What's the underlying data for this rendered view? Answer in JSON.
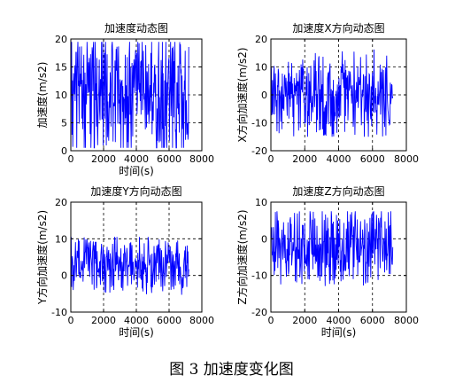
{
  "figure_caption": "图 3  加速度变化图",
  "chart_data": [
    {
      "type": "line",
      "title": "加速度动态图",
      "xlabel": "时间(s)",
      "ylabel": "加速度(m/s2)",
      "xlim": [
        0,
        8000
      ],
      "ylim": [
        0,
        20
      ],
      "xticks": [
        0,
        2000,
        4000,
        6000,
        8000
      ],
      "yticks": [
        0,
        5,
        10,
        15,
        20
      ],
      "grid": true,
      "line_color": "#0000ff",
      "series": [
        {
          "signal": {
            "x_start": 0,
            "x_end": 7200,
            "points": 300,
            "center": 10,
            "amplitude": 6.5,
            "min": 0.5,
            "max": 19.5,
            "period": 420,
            "seed": 3
          }
        }
      ]
    },
    {
      "type": "line",
      "title": "加速度X方向动态图",
      "xlabel": "",
      "ylabel": "X方向加速度(m/s2)",
      "xlim": [
        0,
        8000
      ],
      "ylim": [
        -20,
        20
      ],
      "xticks": [
        0,
        2000,
        4000,
        6000,
        8000
      ],
      "yticks": [
        -20,
        -10,
        0,
        10,
        20
      ],
      "grid": true,
      "line_color": "#0000ff",
      "series": [
        {
          "signal": {
            "x_start": 0,
            "x_end": 7200,
            "points": 300,
            "center": 0,
            "amplitude": 9,
            "min": -15,
            "max": 18,
            "period": 300,
            "seed": 7
          }
        }
      ]
    },
    {
      "type": "line",
      "title": "加速度Y方向动态图",
      "xlabel": "时间(s)",
      "ylabel": "Y方向加速度(m/s2)",
      "xlim": [
        0,
        8000
      ],
      "ylim": [
        -10,
        20
      ],
      "xticks": [
        0,
        2000,
        4000,
        6000,
        8000
      ],
      "yticks": [
        -10,
        0,
        10,
        20
      ],
      "grid": true,
      "line_color": "#0000ff",
      "series": [
        {
          "signal": {
            "x_start": 0,
            "x_end": 7200,
            "points": 300,
            "center": 3,
            "amplitude": 4.5,
            "min": -6,
            "max": 10.5,
            "period": 260,
            "seed": 11
          }
        }
      ]
    },
    {
      "type": "line",
      "title": "加速度Z方向动态图",
      "xlabel": "时间(s)",
      "ylabel": "Z方向加速度(m/s2)",
      "xlim": [
        0,
        8000
      ],
      "ylim": [
        -20,
        10
      ],
      "xticks": [
        0,
        2000,
        4000,
        6000,
        8000
      ],
      "yticks": [
        -20,
        -10,
        0,
        10
      ],
      "grid": true,
      "line_color": "#0000ff",
      "series": [
        {
          "signal": {
            "x_start": 0,
            "x_end": 7200,
            "points": 300,
            "center": -2,
            "amplitude": 6,
            "min": -13,
            "max": 7.5,
            "period": 380,
            "seed": 19
          }
        }
      ]
    }
  ]
}
